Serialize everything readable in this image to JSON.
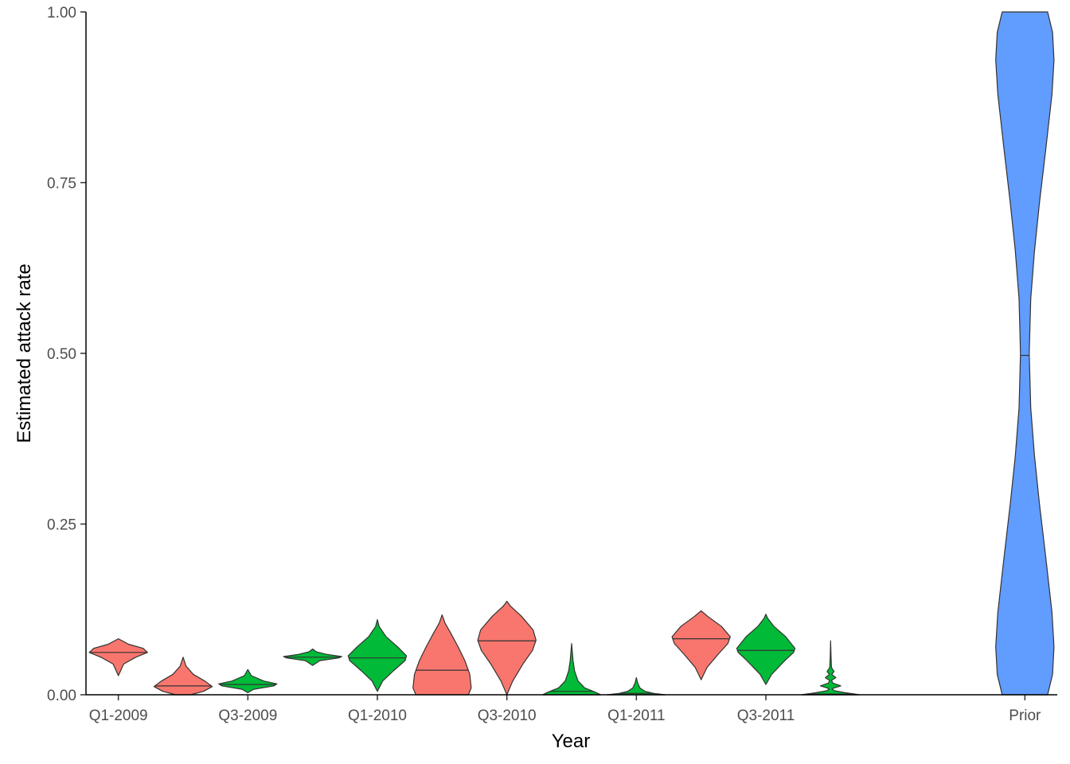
{
  "chart_data": {
    "type": "violin",
    "xlabel": "Year",
    "ylabel": "Estimated attack rate",
    "ylim": [
      0,
      1
    ],
    "y_ticks": [
      "0.00",
      "0.25",
      "0.50",
      "0.75",
      "1.00"
    ],
    "y_tick_values": [
      0,
      0.25,
      0.5,
      0.75,
      1.0
    ],
    "x_tick_labels": [
      {
        "slot": 1,
        "label": "Q1-2009"
      },
      {
        "slot": 3,
        "label": "Q3-2009"
      },
      {
        "slot": 5,
        "label": "Q1-2010"
      },
      {
        "slot": 7,
        "label": "Q3-2010"
      },
      {
        "slot": 9,
        "label": "Q1-2011"
      },
      {
        "slot": 11,
        "label": "Q3-2011"
      },
      {
        "slot": 15,
        "label": "Prior"
      }
    ],
    "grid": false,
    "legend": "none",
    "colors": {
      "red": "#F8766D",
      "green": "#00BA38",
      "blue": "#619CFF",
      "outline": "#333333"
    },
    "series": [
      {
        "slot": 1,
        "color": "red",
        "median": 0.062,
        "min": 0.028,
        "max": 0.082,
        "profile": [
          [
            0.028,
            0.0
          ],
          [
            0.045,
            0.18
          ],
          [
            0.055,
            0.6
          ],
          [
            0.062,
            1.0
          ],
          [
            0.068,
            0.85
          ],
          [
            0.074,
            0.35
          ],
          [
            0.082,
            0.0
          ]
        ]
      },
      {
        "slot": 2,
        "color": "red",
        "median": 0.013,
        "min": 0.0,
        "max": 0.055,
        "profile": [
          [
            0.0,
            0.25
          ],
          [
            0.005,
            0.7
          ],
          [
            0.012,
            1.0
          ],
          [
            0.02,
            0.75
          ],
          [
            0.03,
            0.35
          ],
          [
            0.042,
            0.1
          ],
          [
            0.055,
            0.0
          ]
        ]
      },
      {
        "slot": 3,
        "color": "green",
        "median": 0.015,
        "min": 0.003,
        "max": 0.037,
        "profile": [
          [
            0.003,
            0.0
          ],
          [
            0.008,
            0.2
          ],
          [
            0.013,
            0.9
          ],
          [
            0.016,
            1.0
          ],
          [
            0.02,
            0.55
          ],
          [
            0.028,
            0.12
          ],
          [
            0.037,
            0.0
          ]
        ]
      },
      {
        "slot": 4,
        "color": "green",
        "median": 0.055,
        "min": 0.043,
        "max": 0.067,
        "profile": [
          [
            0.043,
            0.0
          ],
          [
            0.05,
            0.25
          ],
          [
            0.054,
            0.9
          ],
          [
            0.056,
            1.0
          ],
          [
            0.059,
            0.5
          ],
          [
            0.063,
            0.12
          ],
          [
            0.067,
            0.0
          ]
        ]
      },
      {
        "slot": 5,
        "color": "green",
        "median": 0.054,
        "min": 0.005,
        "max": 0.11,
        "profile": [
          [
            0.005,
            0.0
          ],
          [
            0.02,
            0.18
          ],
          [
            0.035,
            0.55
          ],
          [
            0.05,
            0.95
          ],
          [
            0.057,
            1.0
          ],
          [
            0.07,
            0.7
          ],
          [
            0.085,
            0.3
          ],
          [
            0.1,
            0.06
          ],
          [
            0.11,
            0.0
          ]
        ]
      },
      {
        "slot": 6,
        "color": "red",
        "median": 0.036,
        "min": 0.0,
        "max": 0.117,
        "profile": [
          [
            0.0,
            0.9
          ],
          [
            0.01,
            1.0
          ],
          [
            0.03,
            0.95
          ],
          [
            0.05,
            0.78
          ],
          [
            0.07,
            0.55
          ],
          [
            0.09,
            0.3
          ],
          [
            0.105,
            0.1
          ],
          [
            0.117,
            0.0
          ]
        ]
      },
      {
        "slot": 7,
        "color": "red",
        "median": 0.079,
        "min": 0.0,
        "max": 0.137,
        "profile": [
          [
            0.0,
            0.0
          ],
          [
            0.02,
            0.2
          ],
          [
            0.045,
            0.55
          ],
          [
            0.065,
            0.88
          ],
          [
            0.08,
            1.0
          ],
          [
            0.095,
            0.9
          ],
          [
            0.115,
            0.5
          ],
          [
            0.13,
            0.12
          ],
          [
            0.137,
            0.0
          ]
        ]
      },
      {
        "slot": 8,
        "color": "green",
        "median": 0.005,
        "min": 0.0,
        "max": 0.075,
        "profile": [
          [
            0.0,
            1.0
          ],
          [
            0.004,
            0.8
          ],
          [
            0.01,
            0.45
          ],
          [
            0.02,
            0.22
          ],
          [
            0.035,
            0.1
          ],
          [
            0.05,
            0.05
          ],
          [
            0.065,
            0.02
          ],
          [
            0.075,
            0.0
          ]
        ]
      },
      {
        "slot": 9,
        "color": "green",
        "median": 0.002,
        "min": 0.0,
        "max": 0.025,
        "profile": [
          [
            0.0,
            1.0
          ],
          [
            0.002,
            0.6
          ],
          [
            0.005,
            0.3
          ],
          [
            0.01,
            0.12
          ],
          [
            0.018,
            0.04
          ],
          [
            0.025,
            0.0
          ]
        ]
      },
      {
        "slot": 10,
        "color": "red",
        "median": 0.082,
        "min": 0.022,
        "max": 0.123,
        "profile": [
          [
            0.022,
            0.0
          ],
          [
            0.04,
            0.2
          ],
          [
            0.06,
            0.6
          ],
          [
            0.075,
            0.92
          ],
          [
            0.085,
            1.0
          ],
          [
            0.1,
            0.7
          ],
          [
            0.115,
            0.22
          ],
          [
            0.123,
            0.0
          ]
        ]
      },
      {
        "slot": 11,
        "color": "green",
        "median": 0.065,
        "min": 0.015,
        "max": 0.118,
        "profile": [
          [
            0.015,
            0.0
          ],
          [
            0.03,
            0.2
          ],
          [
            0.05,
            0.65
          ],
          [
            0.062,
            0.95
          ],
          [
            0.068,
            1.0
          ],
          [
            0.085,
            0.68
          ],
          [
            0.1,
            0.28
          ],
          [
            0.112,
            0.06
          ],
          [
            0.118,
            0.0
          ]
        ]
      },
      {
        "slot": 12,
        "color": "green",
        "median": 0.001,
        "min": 0.0,
        "max": 0.079,
        "profile": [
          [
            0.0,
            1.0
          ],
          [
            0.003,
            0.5
          ],
          [
            0.006,
            0.12
          ],
          [
            0.009,
            0.05
          ],
          [
            0.013,
            0.35
          ],
          [
            0.017,
            0.08
          ],
          [
            0.021,
            0.03
          ],
          [
            0.025,
            0.18
          ],
          [
            0.03,
            0.04
          ],
          [
            0.034,
            0.12
          ],
          [
            0.04,
            0.03
          ],
          [
            0.055,
            0.015
          ],
          [
            0.079,
            0.0
          ]
        ]
      },
      {
        "slot": 15,
        "color": "blue",
        "median": 0.497,
        "min": 0.0,
        "max": 1.0,
        "profile": [
          [
            0.0,
            0.78
          ],
          [
            0.03,
            0.95
          ],
          [
            0.07,
            1.0
          ],
          [
            0.12,
            0.93
          ],
          [
            0.2,
            0.72
          ],
          [
            0.28,
            0.5
          ],
          [
            0.35,
            0.33
          ],
          [
            0.42,
            0.2
          ],
          [
            0.5,
            0.15
          ],
          [
            0.58,
            0.2
          ],
          [
            0.65,
            0.33
          ],
          [
            0.72,
            0.5
          ],
          [
            0.8,
            0.72
          ],
          [
            0.88,
            0.93
          ],
          [
            0.93,
            1.0
          ],
          [
            0.97,
            0.95
          ],
          [
            1.0,
            0.78
          ]
        ]
      }
    ]
  }
}
